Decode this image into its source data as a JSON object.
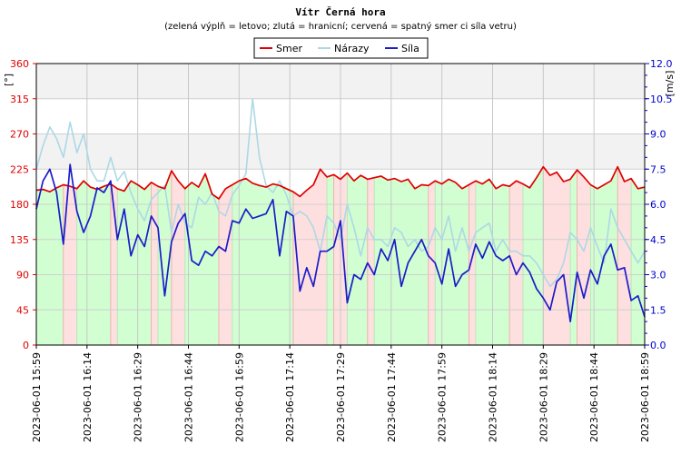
{
  "chart_data": {
    "type": "line",
    "title": "Vítr Černá hora",
    "subtitle": "(zelená výplň = letovo; zlutá = hranicní; cervená = spatný smer ci síla vetru)",
    "ylabel_left": "[°]",
    "ylabel_right": "[m/s]",
    "y_left_range": [
      0,
      360
    ],
    "y_right_range": [
      0,
      12
    ],
    "y_left_ticks": [
      0,
      45,
      90,
      135,
      180,
      225,
      270,
      315,
      360
    ],
    "y_right_ticks": [
      "0.0",
      "1.5",
      "3.0",
      "4.5",
      "6.0",
      "7.5",
      "9.0",
      "10.5",
      "12.0"
    ],
    "x_ticks": [
      "2023-06-01 15:59",
      "2023-06-01 16:14",
      "2023-06-01 16:29",
      "2023-06-01 16:44",
      "2023-06-01 16:59",
      "2023-06-01 17:14",
      "2023-06-01 17:29",
      "2023-06-01 17:44",
      "2023-06-01 17:59",
      "2023-06-01 18:14",
      "2023-06-01 18:29",
      "2023-06-01 18:44",
      "2023-06-01 18:59"
    ],
    "x_range_minutes": [
      0,
      180
    ],
    "grid": true,
    "legend_position": "top-center",
    "colors": {
      "smer": "#e00000",
      "narazy": "#add8e6",
      "sila": "#1c1cc8",
      "fill_good": "#ccffcc",
      "fill_bad": "#ffdddd",
      "left_axis": "#e00000",
      "right_axis": "#0000cc"
    },
    "series": [
      {
        "name": "Smer",
        "axis": "left",
        "x": [
          0,
          2,
          4,
          6,
          8,
          10,
          12,
          14,
          16,
          18,
          20,
          22,
          24,
          26,
          28,
          30,
          32,
          34,
          36,
          38,
          40,
          42,
          44,
          46,
          48,
          50,
          52,
          54,
          56,
          58,
          60,
          62,
          64,
          66,
          68,
          70,
          72,
          74,
          76,
          78,
          80,
          82,
          84,
          86,
          88,
          90,
          92,
          94,
          96,
          98,
          100,
          102,
          104,
          106,
          108,
          110,
          112,
          114,
          116,
          118,
          120,
          122,
          124,
          126,
          128,
          130,
          132,
          134,
          136,
          138,
          140,
          142,
          144,
          146,
          148,
          150,
          152,
          154,
          156,
          158,
          160,
          162,
          164,
          166,
          168,
          170,
          172,
          174,
          176,
          178,
          180
        ],
        "values": [
          198,
          199,
          196,
          201,
          205,
          203,
          200,
          210,
          202,
          199,
          203,
          206,
          200,
          197,
          210,
          205,
          199,
          208,
          203,
          200,
          223,
          210,
          200,
          208,
          202,
          219,
          193,
          187,
          200,
          205,
          210,
          213,
          207,
          204,
          202,
          206,
          204,
          200,
          196,
          190,
          198,
          205,
          225,
          215,
          218,
          212,
          220,
          210,
          217,
          212,
          214,
          216,
          211,
          213,
          209,
          212,
          200,
          205,
          204,
          210,
          206,
          212,
          208,
          200,
          205,
          210,
          206,
          212,
          200,
          205,
          203,
          210,
          206,
          201,
          214,
          228,
          217,
          221,
          209,
          212,
          224,
          215,
          205,
          200,
          205,
          210,
          228,
          209,
          213,
          200,
          202
        ]
      },
      {
        "name": "Nárazy",
        "axis": "right",
        "x": [
          0,
          2,
          4,
          6,
          8,
          10,
          12,
          14,
          16,
          18,
          20,
          22,
          24,
          26,
          28,
          30,
          32,
          34,
          36,
          38,
          40,
          42,
          44,
          46,
          48,
          50,
          52,
          54,
          56,
          58,
          60,
          62,
          64,
          66,
          68,
          70,
          72,
          74,
          76,
          78,
          80,
          82,
          84,
          86,
          88,
          90,
          92,
          94,
          96,
          98,
          100,
          102,
          104,
          106,
          108,
          110,
          112,
          114,
          116,
          118,
          120,
          122,
          124,
          126,
          128,
          130,
          132,
          134,
          136,
          138,
          140,
          142,
          144,
          146,
          148,
          150,
          152,
          154,
          156,
          158,
          160,
          162,
          164,
          166,
          168,
          170,
          172,
          174,
          176,
          178,
          180
        ],
        "values": [
          7.5,
          8.5,
          9.3,
          8.8,
          8.0,
          9.5,
          8.2,
          9.0,
          7.5,
          7.0,
          7.0,
          8.0,
          7.0,
          7.4,
          6.5,
          5.8,
          5.3,
          6.2,
          6.5,
          6.8,
          4.8,
          6.0,
          5.2,
          5.0,
          6.3,
          6.0,
          6.5,
          5.7,
          5.5,
          6.4,
          6.8,
          7.3,
          10.5,
          8.0,
          6.8,
          6.5,
          7.0,
          6.4,
          5.5,
          5.7,
          5.5,
          5.0,
          4.0,
          5.5,
          5.2,
          4.5,
          6.0,
          5.0,
          3.8,
          5.0,
          4.5,
          4.5,
          4.2,
          5.0,
          4.8,
          4.2,
          4.5,
          4.0,
          4.2,
          5.0,
          4.5,
          5.5,
          4.0,
          5.0,
          4.0,
          4.8,
          5.0,
          5.2,
          4.0,
          4.5,
          4.0,
          4.0,
          3.8,
          3.8,
          3.5,
          3.0,
          2.5,
          2.8,
          3.5,
          4.8,
          4.5,
          4.0,
          5.0,
          4.2,
          3.5,
          5.8,
          5.0,
          4.5,
          4.0,
          3.5,
          4.0
        ]
      },
      {
        "name": "Síla",
        "axis": "right",
        "x": [
          0,
          2,
          4,
          6,
          8,
          10,
          12,
          14,
          16,
          18,
          20,
          22,
          24,
          26,
          28,
          30,
          32,
          34,
          36,
          38,
          40,
          42,
          44,
          46,
          48,
          50,
          52,
          54,
          56,
          58,
          60,
          62,
          64,
          66,
          68,
          70,
          72,
          74,
          76,
          78,
          80,
          82,
          84,
          86,
          88,
          90,
          92,
          94,
          96,
          98,
          100,
          102,
          104,
          106,
          108,
          110,
          112,
          114,
          116,
          118,
          120,
          122,
          124,
          126,
          128,
          130,
          132,
          134,
          136,
          138,
          140,
          142,
          144,
          146,
          148,
          150,
          152,
          154,
          156,
          158,
          160,
          162,
          164,
          166,
          168,
          170,
          172,
          174,
          176,
          178,
          180
        ],
        "values": [
          5.8,
          7.0,
          7.5,
          6.5,
          4.3,
          7.7,
          5.7,
          4.8,
          5.5,
          6.7,
          6.5,
          7.0,
          4.5,
          5.8,
          3.8,
          4.7,
          4.2,
          5.5,
          5.0,
          2.1,
          4.4,
          5.2,
          5.6,
          3.6,
          3.4,
          4.0,
          3.8,
          4.2,
          4.0,
          5.3,
          5.2,
          5.8,
          5.4,
          5.5,
          5.6,
          6.2,
          3.8,
          5.7,
          5.5,
          2.3,
          3.3,
          2.5,
          4.0,
          4.0,
          4.2,
          5.3,
          1.8,
          3.0,
          2.8,
          3.5,
          3.0,
          4.1,
          3.6,
          4.5,
          2.5,
          3.5,
          4.0,
          4.5,
          3.8,
          3.5,
          2.6,
          4.1,
          2.5,
          3.0,
          3.2,
          4.3,
          3.7,
          4.4,
          3.8,
          3.6,
          3.8,
          3.0,
          3.5,
          3.1,
          2.4,
          2.0,
          1.5,
          2.7,
          3.0,
          1.0,
          3.1,
          2.0,
          3.2,
          2.6,
          3.8,
          4.3,
          3.2,
          3.3,
          1.9,
          2.1,
          1.2
        ]
      }
    ],
    "fill_segments": [
      {
        "x0": 0,
        "x1": 8,
        "state": "good"
      },
      {
        "x0": 8,
        "x1": 12,
        "state": "bad"
      },
      {
        "x0": 12,
        "x1": 22,
        "state": "good"
      },
      {
        "x0": 22,
        "x1": 24,
        "state": "bad"
      },
      {
        "x0": 24,
        "x1": 34,
        "state": "good"
      },
      {
        "x0": 34,
        "x1": 36,
        "state": "bad"
      },
      {
        "x0": 36,
        "x1": 40,
        "state": "good"
      },
      {
        "x0": 40,
        "x1": 44,
        "state": "bad"
      },
      {
        "x0": 44,
        "x1": 54,
        "state": "good"
      },
      {
        "x0": 54,
        "x1": 58,
        "state": "bad"
      },
      {
        "x0": 58,
        "x1": 76,
        "state": "good"
      },
      {
        "x0": 76,
        "x1": 86,
        "state": "bad"
      },
      {
        "x0": 86,
        "x1": 88,
        "state": "good"
      },
      {
        "x0": 88,
        "x1": 92,
        "state": "bad"
      },
      {
        "x0": 92,
        "x1": 98,
        "state": "good"
      },
      {
        "x0": 98,
        "x1": 100,
        "state": "bad"
      },
      {
        "x0": 100,
        "x1": 116,
        "state": "good"
      },
      {
        "x0": 116,
        "x1": 118,
        "state": "bad"
      },
      {
        "x0": 118,
        "x1": 128,
        "state": "good"
      },
      {
        "x0": 128,
        "x1": 130,
        "state": "bad"
      },
      {
        "x0": 130,
        "x1": 140,
        "state": "good"
      },
      {
        "x0": 140,
        "x1": 144,
        "state": "bad"
      },
      {
        "x0": 144,
        "x1": 150,
        "state": "good"
      },
      {
        "x0": 150,
        "x1": 158,
        "state": "bad"
      },
      {
        "x0": 158,
        "x1": 160,
        "state": "good"
      },
      {
        "x0": 160,
        "x1": 164,
        "state": "bad"
      },
      {
        "x0": 164,
        "x1": 172,
        "state": "good"
      },
      {
        "x0": 172,
        "x1": 176,
        "state": "bad"
      },
      {
        "x0": 176,
        "x1": 180,
        "state": "good"
      }
    ]
  }
}
